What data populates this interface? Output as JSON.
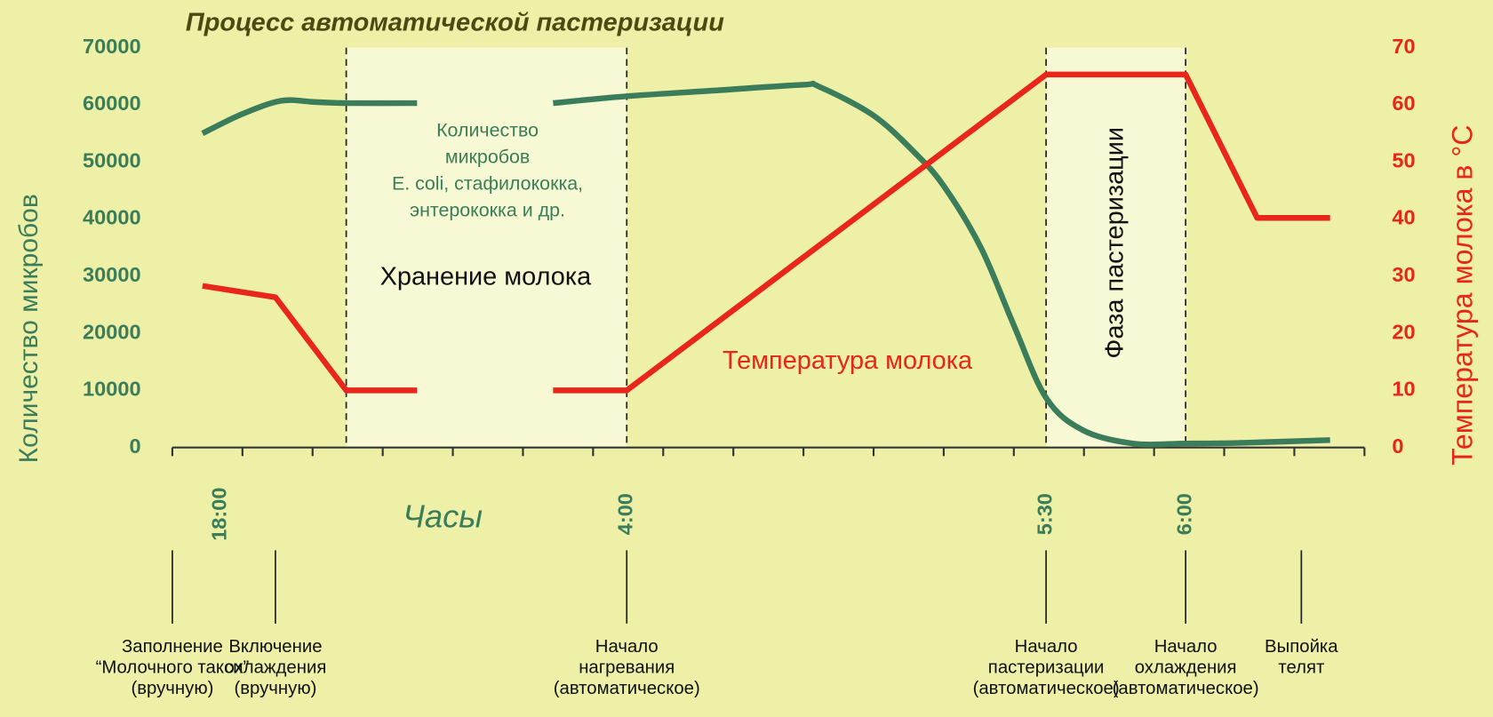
{
  "chart_data": {
    "type": "line",
    "title": "Процесс автоматической пастеризации",
    "y_label": "Количество микробов",
    "y2_label": "Температура молока в °C",
    "x_label": "Часы",
    "xlim": [
      0,
      17
    ],
    "minor_xticks": [
      0,
      1,
      2,
      3,
      4,
      5,
      6,
      7,
      8,
      9,
      10,
      11,
      12,
      13,
      14,
      15,
      16,
      17
    ],
    "xticks": [
      {
        "value": 0.69,
        "label": "18:00"
      },
      {
        "value": 6.48,
        "label": "4:00"
      },
      {
        "value": 12.46,
        "label": "5:30"
      },
      {
        "value": 14.45,
        "label": "6:00"
      }
    ],
    "dashed_lines": [
      2.48,
      6.48,
      12.46,
      14.45
    ],
    "shaded_ranges": [
      [
        2.48,
        6.48
      ],
      [
        12.46,
        14.45
      ]
    ],
    "ylim": [
      0,
      70000
    ],
    "yticks": [
      0,
      10000,
      20000,
      30000,
      40000,
      50000,
      60000,
      70000
    ],
    "y2lim": [
      0,
      70
    ],
    "y2ticks": [
      0,
      10,
      20,
      30,
      40,
      50,
      60,
      70
    ],
    "series": [
      {
        "color": "#3b7d5a",
        "smooth": true,
        "x": [
          0.43,
          0.98,
          1.55,
          2.02,
          2.48,
          3.49,
          null,
          5.43,
          6.48,
          7.73,
          8.99,
          9.22,
          9.99,
          10.58,
          11.0,
          11.53,
          11.99,
          12.46,
          12.99,
          13.7,
          14.45,
          15.19,
          16.51
        ],
        "values": [
          55000,
          58300,
          60700,
          60500,
          60300,
          60300,
          null,
          60300,
          61500,
          62500,
          63500,
          63200,
          58200,
          51700,
          45800,
          35000,
          21700,
          8700,
          3000,
          700,
          700,
          800,
          1300
        ]
      },
      {
        "color": "#e8261c",
        "axis": "y2",
        "x": [
          0.43,
          1.47,
          2.48,
          3.49,
          null,
          5.43,
          6.48,
          12.46,
          14.45,
          15.47,
          16.51
        ],
        "values": [
          28.3,
          26.3,
          10,
          10,
          null,
          10,
          10,
          65.3,
          65.3,
          40.2,
          40.2
        ]
      }
    ],
    "annotations": [
      {
        "lines": [
          "Количество",
          "микробов",
          "E. coli, стафилококка,",
          "энтерококка и др."
        ],
        "color": "#3b7d5a"
      },
      {
        "lines": [
          "Хранение молока"
        ],
        "color": "#111111"
      },
      {
        "lines": [
          "Температура молока"
        ],
        "color": "#e8261c"
      },
      {
        "lines": [
          "Фаза пастеризации"
        ],
        "color": "#111111"
      }
    ],
    "events": [
      {
        "x": 0,
        "lines": [
          "Заполнение",
          "“Молочного такси”",
          "(вручную)"
        ]
      },
      {
        "x": 1.47,
        "lines": [
          "Включение",
          "охлаждения",
          "(вручную)"
        ]
      },
      {
        "x": 6.48,
        "lines": [
          "Начало",
          "нагревания",
          "(автоматическое)"
        ]
      },
      {
        "x": 12.46,
        "lines": [
          "Начало",
          "пастеризации",
          "(автоматическое)"
        ]
      },
      {
        "x": 14.45,
        "lines": [
          "Начало",
          "охлаждения",
          "(автоматическое)"
        ]
      },
      {
        "x": 16.1,
        "lines": [
          "Выпойка",
          "телят"
        ]
      }
    ]
  }
}
